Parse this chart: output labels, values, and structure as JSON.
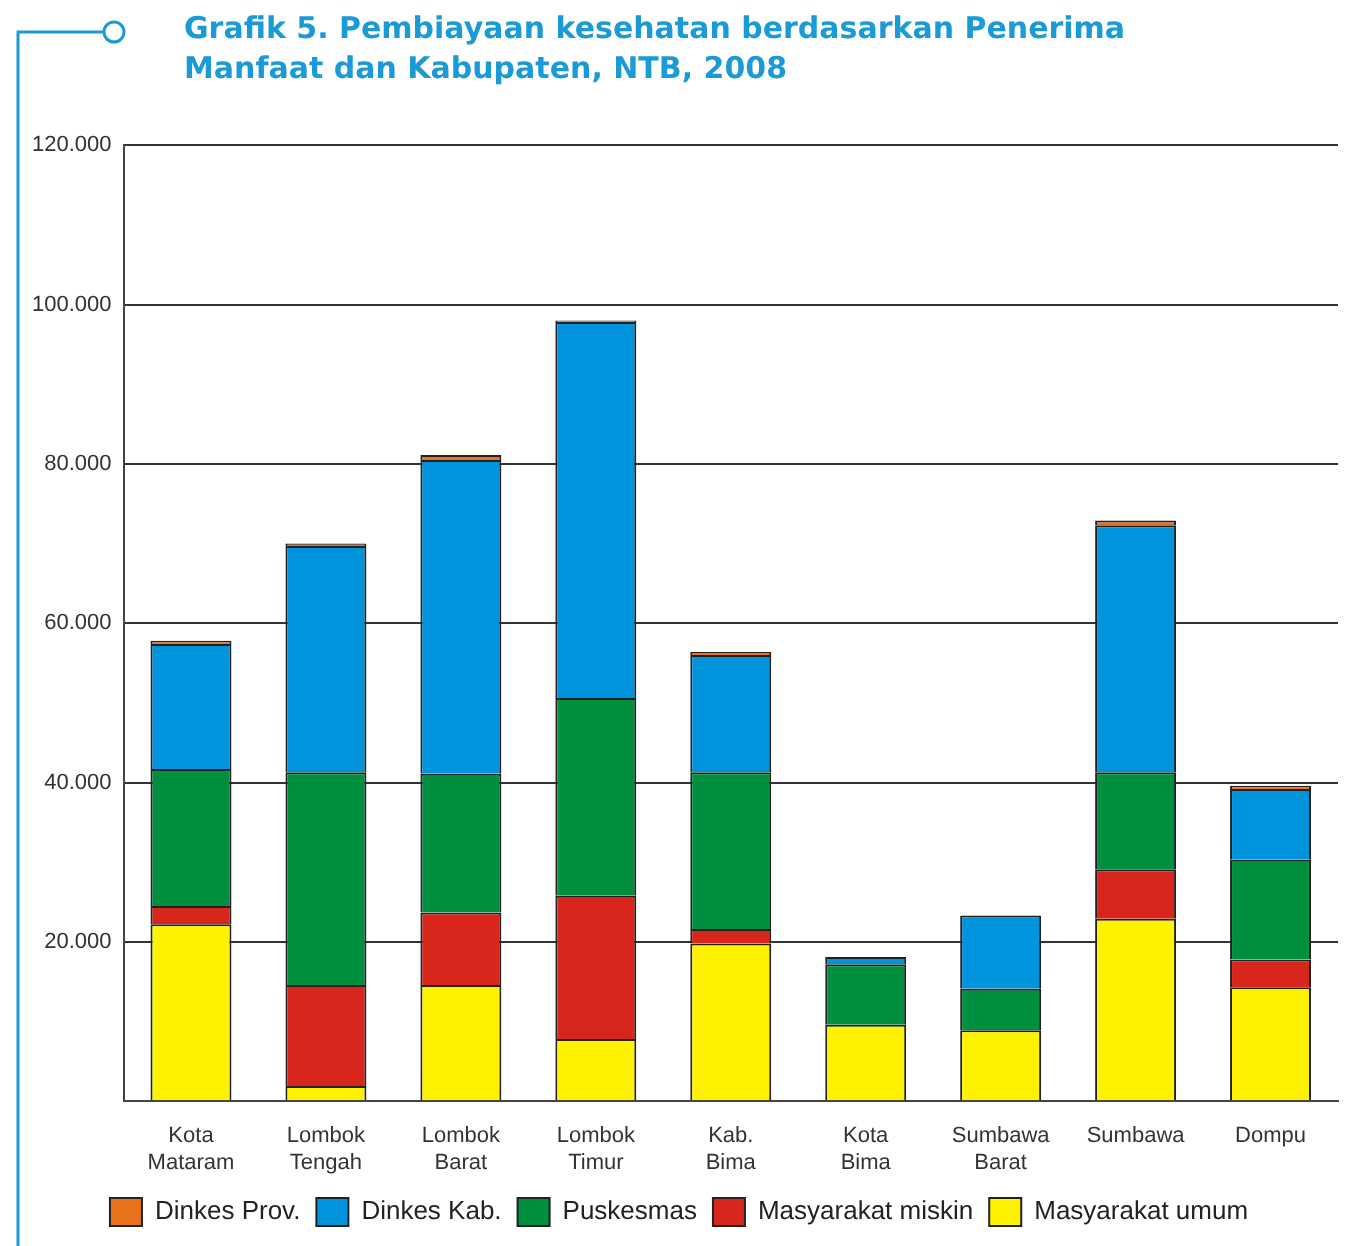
{
  "chart_data": {
    "type": "bar",
    "stacked": true,
    "title": "Grafik 5.  Pembiayaan kesehatan berdasarkan Penerima Manfaat dan Kabupaten, NTB, 2008",
    "categories": [
      "Kota\nMataram",
      "Lombok\nTengah",
      "Lombok\nBarat",
      "Lombok\nTimur",
      "Kab.\nBima",
      "Kota\nBima",
      "Sumbawa\nBarat",
      "Sumbawa",
      "Dompu"
    ],
    "series": [
      {
        "name": "Masyarakat umum",
        "color": "#fff200",
        "values": [
          22200,
          1900,
          14600,
          7800,
          19800,
          9600,
          8900,
          22900,
          14300
        ]
      },
      {
        "name": "Masyarakat miskin",
        "color": "#d9261c",
        "values": [
          2300,
          12700,
          9100,
          18000,
          1800,
          0,
          0,
          6200,
          3500
        ]
      },
      {
        "name": "Puskesmas",
        "color": "#008f3f",
        "values": [
          17200,
          26700,
          17400,
          24800,
          19700,
          7600,
          5200,
          12200,
          12500
        ]
      },
      {
        "name": "Dinkes Kab.",
        "color": "#0094dc",
        "values": [
          15700,
          28400,
          39400,
          47200,
          14700,
          900,
          9200,
          31000,
          8900
        ]
      },
      {
        "name": "Dinkes Prov.",
        "color": "#e8731c",
        "values": [
          400,
          300,
          600,
          200,
          400,
          0,
          0,
          600,
          400
        ]
      }
    ],
    "ylim": [
      0,
      120000
    ],
    "yticks": [
      {
        "value": 0,
        "label": null
      },
      {
        "value": 20000,
        "label": "20.000"
      },
      {
        "value": 40000,
        "label": "40.000"
      },
      {
        "value": 60000,
        "label": "60.000"
      },
      {
        "value": 80000,
        "label": "80.000"
      },
      {
        "value": 100000,
        "label": "100.000"
      },
      {
        "value": 120000,
        "label": "120.000"
      }
    ],
    "grid": "y",
    "legend": "bottom"
  }
}
